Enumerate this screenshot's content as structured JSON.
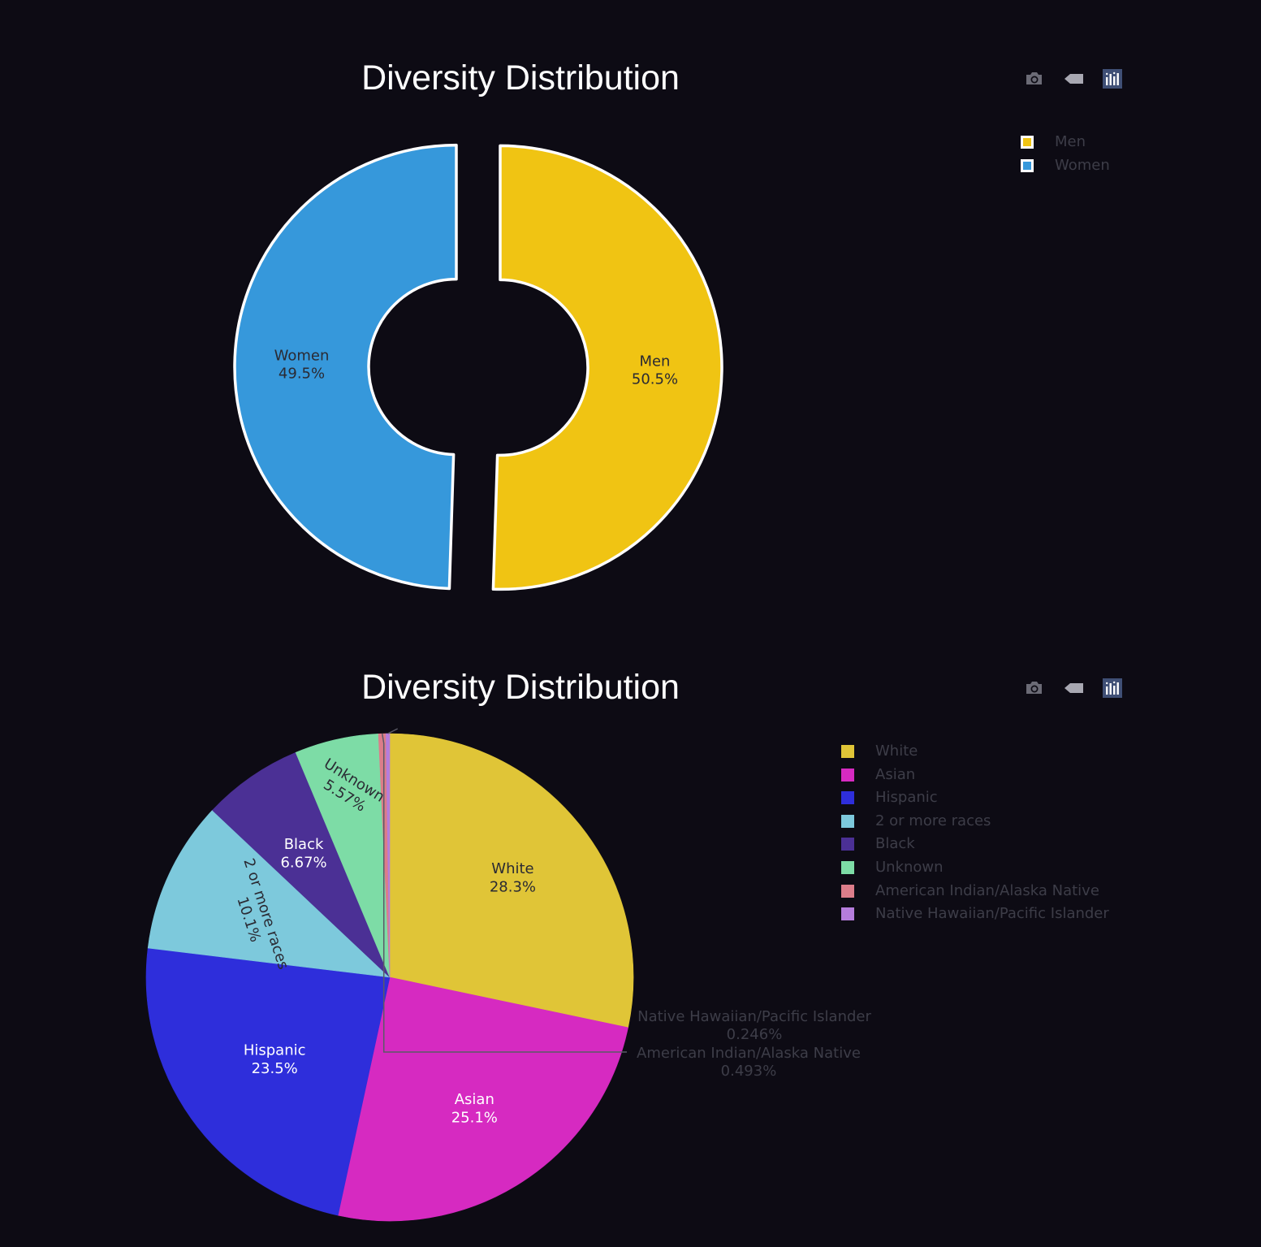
{
  "modebar": {
    "icons": [
      "camera-icon",
      "tag-icon",
      "plotly-logo-icon"
    ]
  },
  "chart_data": [
    {
      "type": "pie",
      "hole": true,
      "pulled": true,
      "title": "Diversity Distribution",
      "legend_position": "top-right",
      "slice_border_color": "#ffffff",
      "labels": [
        "Men",
        "Women"
      ],
      "values": [
        50.5,
        49.5
      ],
      "value_labels": [
        "50.5%",
        "49.5%"
      ],
      "colors": [
        "#f0c413",
        "#3698db"
      ],
      "text_colors": [
        "#2a2a33",
        "#2a2a33"
      ]
    },
    {
      "type": "pie",
      "hole": false,
      "title": "Diversity Distribution",
      "legend_position": "top-right",
      "labels": [
        "White",
        "Asian",
        "Hispanic",
        "2 or more races",
        "Black",
        "Unknown",
        "American Indian/Alaska Native",
        "Native Hawaiian/Pacific Islander"
      ],
      "values": [
        28.3,
        25.1,
        23.5,
        10.1,
        6.67,
        5.57,
        0.493,
        0.246
      ],
      "value_labels": [
        "28.3%",
        "25.1%",
        "23.5%",
        "10.1%",
        "6.67%",
        "5.57%",
        "0.493%",
        "0.246%"
      ],
      "colors": [
        "#e0c537",
        "#d62ac1",
        "#2e2edb",
        "#7dc9dc",
        "#4b3095",
        "#7ddca6",
        "#dc7d8a",
        "#b57ddc"
      ],
      "text_colors": [
        "#2a2a33",
        "#ffffff",
        "#ffffff",
        "#2a2a33",
        "#ffffff",
        "#2a2a33",
        "#3d3d48",
        "#3d3d48"
      ]
    }
  ]
}
